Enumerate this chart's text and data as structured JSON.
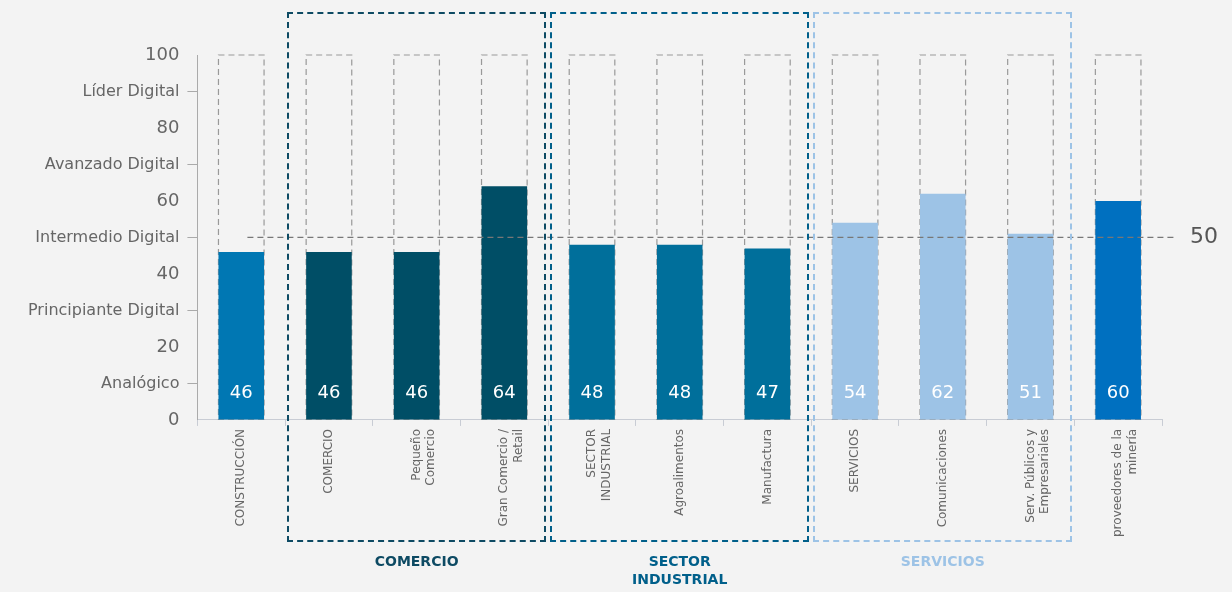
{
  "chart_data": {
    "type": "bar",
    "categories": [
      "CONSTRUCCIÓN",
      "COMERCIO",
      "Pequeño Comercio",
      "Gran Comercio / Retail",
      "SECTOR INDUSTRIAL",
      "Agroalimentos",
      "Manufactura",
      "SERVICIOS",
      "Comunicaciones",
      "Serv. Públicos y Empresariales",
      "proveedores de la minería"
    ],
    "series": [
      {
        "color": "#999999",
        "line_style": "dashed",
        "values": [
          100,
          100,
          100,
          100,
          100,
          100,
          100,
          100,
          100,
          100,
          100
        ]
      },
      {
        "colors": [
          "#0077b3",
          "#004e66",
          "#004e66",
          "#004e66",
          "#006f9b",
          "#006f9b",
          "#006f9b",
          "#9dc3e6",
          "#9dc3e6",
          "#9dc3e6",
          "#0070c0"
        ],
        "values": [
          46,
          46,
          46,
          64,
          48,
          48,
          47,
          54,
          62,
          51,
          60
        ],
        "value_labels": [
          "46",
          "46",
          "46",
          "64",
          "48",
          "48",
          "47",
          "54",
          "62",
          "51",
          "60"
        ]
      }
    ],
    "ylim": [
      0,
      100
    ],
    "yticks": [
      0,
      {
        "value": 10,
        "label": "Analógico"
      },
      20,
      {
        "value": 30,
        "label": "Principiante Digital"
      },
      40,
      {
        "value": 50,
        "label": "Intermedio Digital"
      },
      60,
      {
        "value": 70,
        "label": "Avanzado Digital"
      },
      80,
      {
        "value": 90,
        "label": "Líder Digital"
      },
      100
    ],
    "ref_lines": [
      {
        "axis": "y",
        "value": 50,
        "label": "50",
        "line_style": "dashed",
        "color": "#777777"
      }
    ],
    "annotations": [
      "COMERCIO",
      "SECTOR INDUSTRIAL",
      "SERVICIOS"
    ]
  }
}
